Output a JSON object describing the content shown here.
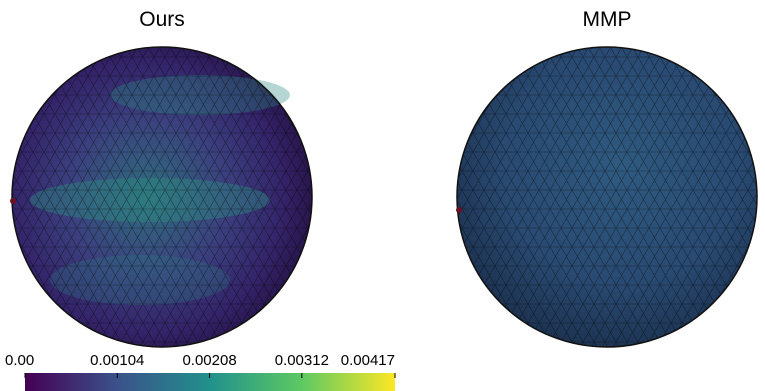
{
  "panels": [
    {
      "title": "Ours"
    },
    {
      "title": "MMP"
    }
  ],
  "colorbar": {
    "lim": [
      0,
      0.00417
    ],
    "ticks": [
      {
        "value": 0,
        "label": "0.00"
      },
      0.00104,
      0.00208,
      0.00312,
      0.00417
    ]
  }
}
